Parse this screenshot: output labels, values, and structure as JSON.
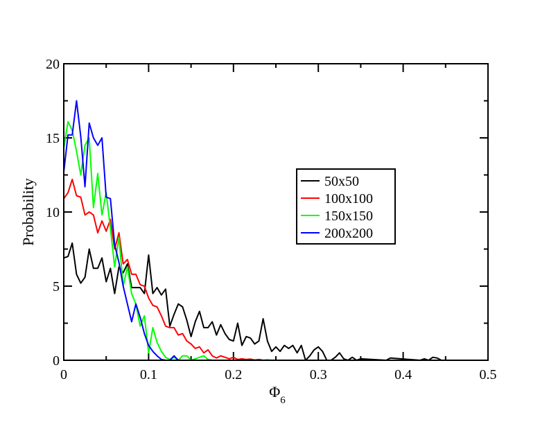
{
  "chart_data": {
    "type": "line",
    "title": "",
    "xlabel": "Φ",
    "xlabel_subscript": "6",
    "ylabel": "Probability",
    "xlim": [
      0,
      0.5
    ],
    "ylim": [
      0,
      20
    ],
    "x_ticks": [
      0,
      0.1,
      0.2,
      0.3,
      0.4,
      0.5
    ],
    "x_tick_labels": [
      "0",
      "0.1",
      "0.2",
      "0.3",
      "0.4",
      "0.5"
    ],
    "y_ticks": [
      0,
      5,
      10,
      15,
      20
    ],
    "y_tick_labels": [
      "0",
      "5",
      "10",
      "15",
      "20"
    ],
    "grid": false,
    "legend_position": "center-right",
    "series": [
      {
        "name": "50x50",
        "color": "#000000",
        "x": [
          0,
          0.005,
          0.01,
          0.015,
          0.02,
          0.025,
          0.03,
          0.035,
          0.04,
          0.045,
          0.05,
          0.055,
          0.06,
          0.065,
          0.07,
          0.075,
          0.08,
          0.085,
          0.09,
          0.095,
          0.1,
          0.105,
          0.11,
          0.115,
          0.12,
          0.125,
          0.13,
          0.135,
          0.14,
          0.145,
          0.15,
          0.155,
          0.16,
          0.165,
          0.17,
          0.175,
          0.18,
          0.185,
          0.19,
          0.195,
          0.2,
          0.205,
          0.21,
          0.215,
          0.22,
          0.225,
          0.23,
          0.235,
          0.24,
          0.245,
          0.25,
          0.255,
          0.26,
          0.265,
          0.27,
          0.275,
          0.28,
          0.285,
          0.29,
          0.295,
          0.3,
          0.305,
          0.31,
          0.315,
          0.32,
          0.325,
          0.33,
          0.335,
          0.34,
          0.345,
          0.35,
          0.38,
          0.385,
          0.42,
          0.425,
          0.43,
          0.435,
          0.44,
          0.445
        ],
        "y": [
          6.9,
          7.0,
          7.9,
          5.8,
          5.2,
          5.6,
          7.5,
          6.2,
          6.2,
          6.9,
          5.3,
          6.2,
          4.5,
          6.3,
          5.9,
          6.5,
          4.9,
          4.9,
          4.9,
          4.5,
          7.1,
          4.5,
          4.9,
          4.4,
          4.8,
          2.3,
          3.1,
          3.8,
          3.6,
          2.7,
          1.6,
          2.6,
          3.3,
          2.2,
          2.2,
          2.6,
          1.7,
          2.4,
          1.8,
          1.4,
          1.3,
          2.5,
          1.0,
          1.6,
          1.5,
          1.1,
          1.3,
          2.8,
          1.3,
          0.6,
          0.9,
          0.6,
          1.0,
          0.8,
          1.0,
          0.5,
          1.0,
          0,
          0.3,
          0.7,
          0.9,
          0.6,
          0,
          0,
          0.2,
          0.5,
          0.1,
          0,
          0.2,
          0,
          0.1,
          0,
          0.15,
          0,
          0.1,
          0,
          0.2,
          0.15,
          0
        ]
      },
      {
        "name": "100x100",
        "color": "#ff0000",
        "x": [
          0,
          0.005,
          0.01,
          0.015,
          0.02,
          0.025,
          0.03,
          0.035,
          0.04,
          0.045,
          0.05,
          0.055,
          0.06,
          0.065,
          0.07,
          0.075,
          0.08,
          0.085,
          0.09,
          0.095,
          0.1,
          0.105,
          0.11,
          0.115,
          0.12,
          0.125,
          0.13,
          0.135,
          0.14,
          0.145,
          0.15,
          0.155,
          0.16,
          0.165,
          0.17,
          0.175,
          0.18,
          0.185,
          0.19,
          0.195,
          0.2,
          0.205,
          0.21,
          0.215,
          0.22,
          0.225,
          0.23,
          0.235,
          0.24,
          0.245,
          0.25
        ],
        "y": [
          10.9,
          11.3,
          12.2,
          11.1,
          11.0,
          9.8,
          10.0,
          9.8,
          8.6,
          9.4,
          8.7,
          9.5,
          7.5,
          8.6,
          6.5,
          6.8,
          5.8,
          5.8,
          5.1,
          5.0,
          4.2,
          3.7,
          3.6,
          3.0,
          2.3,
          2.2,
          2.2,
          1.7,
          1.8,
          1.3,
          1.1,
          0.8,
          0.9,
          0.5,
          0.7,
          0.3,
          0.15,
          0.3,
          0.2,
          0.1,
          0.2,
          0.05,
          0.1,
          0.05,
          0.08,
          0.02,
          0.05,
          0,
          0.02,
          0,
          0
        ]
      },
      {
        "name": "150x150",
        "color": "#00ff00",
        "x": [
          0,
          0.005,
          0.01,
          0.015,
          0.02,
          0.025,
          0.03,
          0.035,
          0.04,
          0.045,
          0.05,
          0.055,
          0.06,
          0.065,
          0.07,
          0.075,
          0.08,
          0.085,
          0.09,
          0.095,
          0.1,
          0.105,
          0.11,
          0.115,
          0.12,
          0.125,
          0.13,
          0.135,
          0.14,
          0.145,
          0.15,
          0.155,
          0.16,
          0.165,
          0.17,
          0.175,
          0.18
        ],
        "y": [
          14.3,
          16.1,
          15.5,
          14.1,
          12.5,
          14.5,
          15.0,
          10.3,
          12.6,
          9.8,
          11.3,
          8.9,
          6.3,
          8.3,
          5.0,
          6.3,
          4.5,
          3.8,
          2.3,
          3.0,
          0.5,
          2.2,
          1.2,
          0.6,
          0.2,
          0.05,
          0.2,
          0,
          0.3,
          0.3,
          0,
          0.1,
          0.2,
          0.3,
          0.05,
          0,
          0
        ]
      },
      {
        "name": "200x200",
        "color": "#0000ff",
        "x": [
          0,
          0.005,
          0.01,
          0.015,
          0.02,
          0.025,
          0.03,
          0.035,
          0.04,
          0.045,
          0.05,
          0.055,
          0.06,
          0.065,
          0.07,
          0.075,
          0.08,
          0.085,
          0.09,
          0.095,
          0.1,
          0.105,
          0.11,
          0.115,
          0.12,
          0.125,
          0.13,
          0.135,
          0.14
        ],
        "y": [
          12.7,
          15.2,
          15.2,
          17.5,
          15.1,
          11.7,
          16.0,
          15.0,
          14.5,
          15.0,
          11.0,
          10.9,
          7.8,
          6.6,
          5.0,
          3.8,
          2.6,
          3.8,
          2.9,
          1.8,
          1.0,
          0.6,
          0.3,
          0.05,
          0,
          0,
          0.3,
          0,
          0
        ]
      }
    ]
  }
}
